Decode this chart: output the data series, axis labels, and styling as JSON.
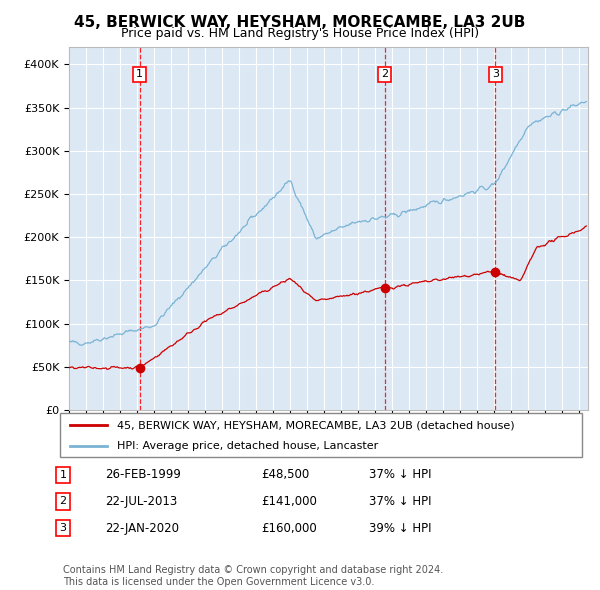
{
  "title": "45, BERWICK WAY, HEYSHAM, MORECAMBE, LA3 2UB",
  "subtitle": "Price paid vs. HM Land Registry's House Price Index (HPI)",
  "title_fontsize": 11,
  "subtitle_fontsize": 9,
  "hpi_color": "#7ab3d4",
  "price_color": "#cc0000",
  "bg_color": "#dce9f5",
  "grid_color": "#ffffff",
  "ylim": [
    0,
    420000
  ],
  "yticks": [
    0,
    50000,
    100000,
    150000,
    200000,
    250000,
    300000,
    350000,
    400000
  ],
  "ytick_labels": [
    "£0",
    "£50K",
    "£100K",
    "£150K",
    "£200K",
    "£250K",
    "£300K",
    "£350K",
    "£400K"
  ],
  "sales": [
    {
      "num": 1,
      "date_x": 1999.15,
      "price": 48500,
      "label": "26-FEB-1999",
      "pct": "37%",
      "dir": "↓"
    },
    {
      "num": 2,
      "date_x": 2013.55,
      "price": 141000,
      "label": "22-JUL-2013",
      "pct": "37%",
      "dir": "↓"
    },
    {
      "num": 3,
      "date_x": 2020.06,
      "price": 160000,
      "label": "22-JAN-2020",
      "pct": "39%",
      "dir": "↓"
    }
  ],
  "legend_property_label": "45, BERWICK WAY, HEYSHAM, MORECAMBE, LA3 2UB (detached house)",
  "legend_hpi_label": "HPI: Average price, detached house, Lancaster",
  "footer": "Contains HM Land Registry data © Crown copyright and database right 2024.\nThis data is licensed under the Open Government Licence v3.0.",
  "xmin": 1995.0,
  "xmax": 2025.5
}
